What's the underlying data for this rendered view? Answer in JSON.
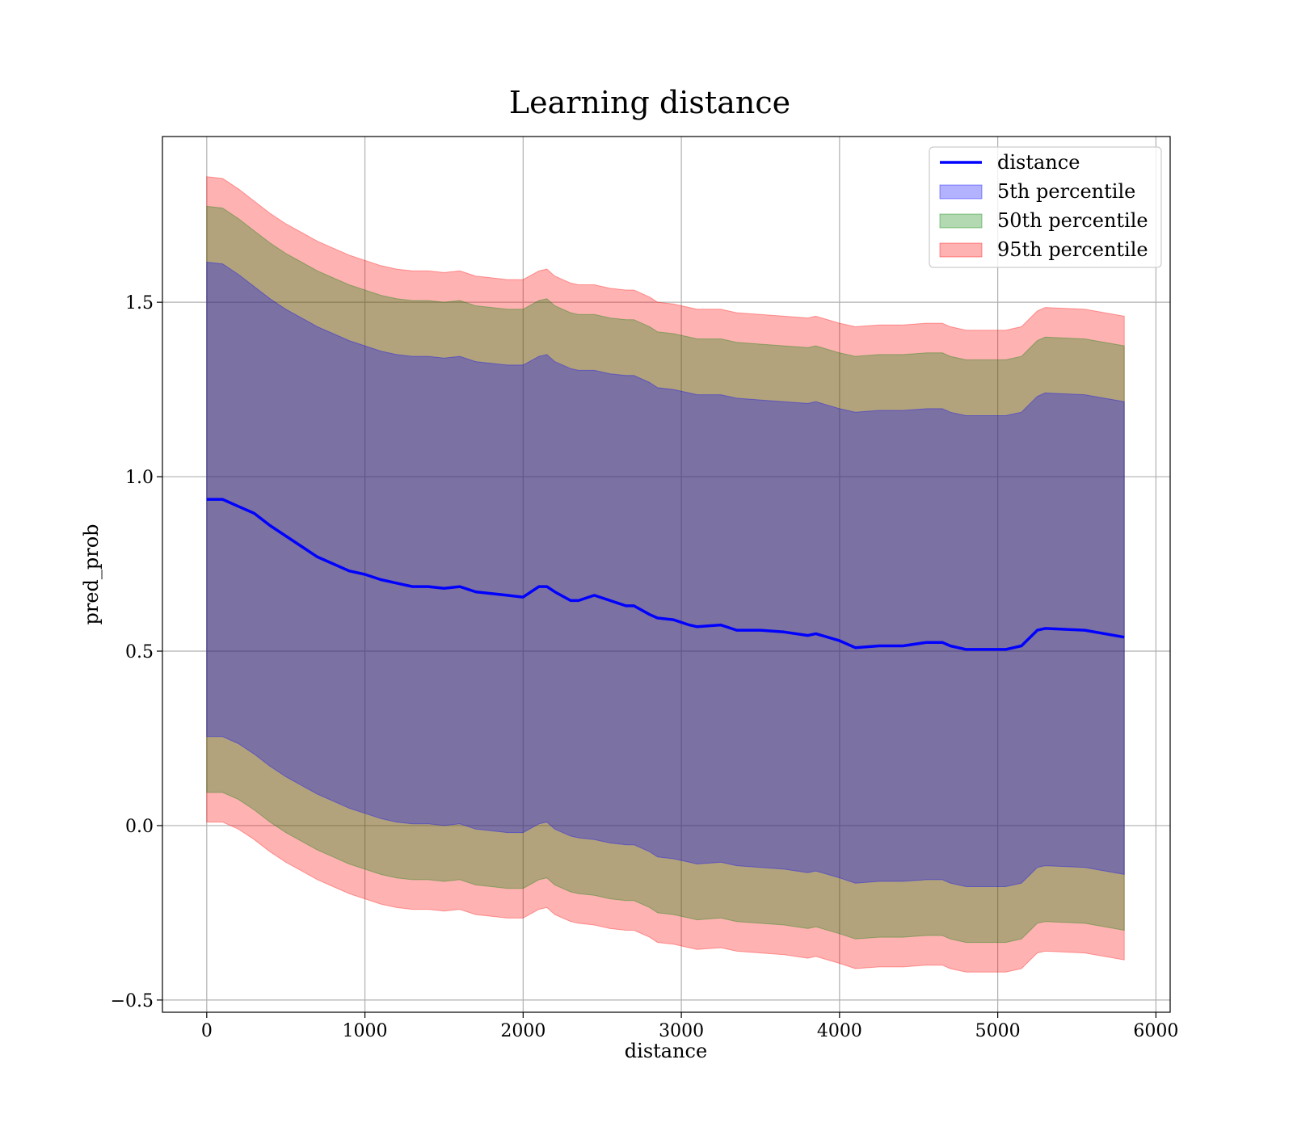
{
  "chart_data": {
    "type": "area",
    "title": "Learning distance",
    "xlabel": "distance",
    "ylabel": "pred_prob",
    "xlim": [
      -280,
      6090
    ],
    "ylim": [
      -0.535,
      1.975
    ],
    "xticks": [
      0,
      1000,
      2000,
      3000,
      4000,
      5000,
      6000
    ],
    "xtick_labels": [
      "0",
      "1000",
      "2000",
      "3000",
      "4000",
      "5000",
      "6000"
    ],
    "yticks": [
      -0.5,
      0.0,
      0.5,
      1.0,
      1.5
    ],
    "ytick_labels": [
      "−0.5",
      "0.0",
      "0.5",
      "1.0",
      "1.5"
    ],
    "grid": true,
    "legend_position": "top-right",
    "x": [
      0,
      100,
      200,
      300,
      400,
      500,
      600,
      700,
      800,
      900,
      1000,
      1100,
      1200,
      1300,
      1400,
      1500,
      1600,
      1700,
      1800,
      1900,
      2000,
      2100,
      2150,
      2200,
      2300,
      2350,
      2450,
      2550,
      2650,
      2700,
      2800,
      2850,
      2950,
      3050,
      3100,
      3250,
      3350,
      3500,
      3650,
      3800,
      3850,
      4000,
      4100,
      4250,
      4300,
      4400,
      4550,
      4650,
      4700,
      4800,
      5050,
      5150,
      5250,
      5300,
      5550,
      5800
    ],
    "series": [
      {
        "name": "distance",
        "kind": "line",
        "color": "#0000ff",
        "values": [
          0.935,
          0.935,
          0.915,
          0.895,
          0.86,
          0.83,
          0.8,
          0.77,
          0.75,
          0.73,
          0.72,
          0.705,
          0.695,
          0.685,
          0.685,
          0.68,
          0.685,
          0.67,
          0.665,
          0.66,
          0.655,
          0.685,
          0.685,
          0.67,
          0.645,
          0.645,
          0.66,
          0.645,
          0.63,
          0.63,
          0.605,
          0.595,
          0.59,
          0.575,
          0.57,
          0.575,
          0.56,
          0.56,
          0.555,
          0.545,
          0.55,
          0.53,
          0.51,
          0.515,
          0.515,
          0.515,
          0.525,
          0.525,
          0.515,
          0.505,
          0.505,
          0.515,
          0.56,
          0.565,
          0.56,
          0.54
        ]
      },
      {
        "name": "5th percentile",
        "kind": "band",
        "color": "#0000ff",
        "opacity": 0.3,
        "upper": [
          1.615,
          1.61,
          1.58,
          1.545,
          1.51,
          1.48,
          1.455,
          1.43,
          1.41,
          1.39,
          1.375,
          1.36,
          1.35,
          1.345,
          1.345,
          1.34,
          1.345,
          1.33,
          1.325,
          1.32,
          1.32,
          1.345,
          1.35,
          1.33,
          1.31,
          1.305,
          1.305,
          1.295,
          1.29,
          1.29,
          1.27,
          1.255,
          1.25,
          1.24,
          1.235,
          1.235,
          1.225,
          1.22,
          1.215,
          1.21,
          1.215,
          1.195,
          1.185,
          1.19,
          1.19,
          1.19,
          1.195,
          1.195,
          1.185,
          1.175,
          1.175,
          1.185,
          1.23,
          1.24,
          1.235,
          1.215
        ],
        "lower": [
          0.255,
          0.255,
          0.235,
          0.205,
          0.17,
          0.14,
          0.115,
          0.09,
          0.07,
          0.05,
          0.035,
          0.02,
          0.01,
          0.005,
          0.005,
          0.0,
          0.005,
          -0.01,
          -0.015,
          -0.02,
          -0.02,
          0.005,
          0.01,
          -0.01,
          -0.03,
          -0.035,
          -0.04,
          -0.05,
          -0.055,
          -0.055,
          -0.075,
          -0.09,
          -0.095,
          -0.105,
          -0.11,
          -0.105,
          -0.115,
          -0.12,
          -0.125,
          -0.135,
          -0.13,
          -0.15,
          -0.165,
          -0.16,
          -0.16,
          -0.16,
          -0.155,
          -0.155,
          -0.165,
          -0.175,
          -0.175,
          -0.165,
          -0.12,
          -0.115,
          -0.12,
          -0.14
        ]
      },
      {
        "name": "50th percentile",
        "kind": "band",
        "color": "#008000",
        "opacity": 0.3,
        "upper": [
          1.775,
          1.77,
          1.74,
          1.705,
          1.67,
          1.64,
          1.615,
          1.59,
          1.57,
          1.55,
          1.535,
          1.52,
          1.51,
          1.505,
          1.505,
          1.5,
          1.505,
          1.49,
          1.485,
          1.48,
          1.48,
          1.505,
          1.51,
          1.49,
          1.47,
          1.465,
          1.465,
          1.455,
          1.45,
          1.45,
          1.43,
          1.415,
          1.41,
          1.4,
          1.395,
          1.395,
          1.385,
          1.38,
          1.375,
          1.37,
          1.375,
          1.355,
          1.345,
          1.35,
          1.35,
          1.35,
          1.355,
          1.355,
          1.345,
          1.335,
          1.335,
          1.345,
          1.39,
          1.4,
          1.395,
          1.375
        ],
        "lower": [
          0.095,
          0.095,
          0.075,
          0.045,
          0.01,
          -0.02,
          -0.045,
          -0.07,
          -0.09,
          -0.11,
          -0.125,
          -0.14,
          -0.15,
          -0.155,
          -0.155,
          -0.16,
          -0.155,
          -0.17,
          -0.175,
          -0.18,
          -0.18,
          -0.155,
          -0.15,
          -0.17,
          -0.19,
          -0.195,
          -0.2,
          -0.21,
          -0.215,
          -0.215,
          -0.235,
          -0.25,
          -0.255,
          -0.265,
          -0.27,
          -0.265,
          -0.275,
          -0.28,
          -0.285,
          -0.295,
          -0.29,
          -0.31,
          -0.325,
          -0.32,
          -0.32,
          -0.32,
          -0.315,
          -0.315,
          -0.325,
          -0.335,
          -0.335,
          -0.325,
          -0.28,
          -0.275,
          -0.28,
          -0.3
        ]
      },
      {
        "name": "95th percentile",
        "kind": "band",
        "color": "#ff0000",
        "opacity": 0.3,
        "upper": [
          1.86,
          1.855,
          1.825,
          1.79,
          1.755,
          1.725,
          1.7,
          1.675,
          1.655,
          1.635,
          1.62,
          1.605,
          1.595,
          1.59,
          1.59,
          1.585,
          1.59,
          1.575,
          1.57,
          1.565,
          1.565,
          1.59,
          1.595,
          1.575,
          1.555,
          1.55,
          1.55,
          1.54,
          1.535,
          1.535,
          1.515,
          1.5,
          1.495,
          1.485,
          1.48,
          1.48,
          1.47,
          1.465,
          1.46,
          1.455,
          1.46,
          1.44,
          1.43,
          1.435,
          1.435,
          1.435,
          1.44,
          1.44,
          1.43,
          1.42,
          1.42,
          1.43,
          1.475,
          1.485,
          1.48,
          1.46
        ],
        "lower": [
          0.01,
          0.01,
          -0.01,
          -0.04,
          -0.075,
          -0.105,
          -0.13,
          -0.155,
          -0.175,
          -0.195,
          -0.21,
          -0.225,
          -0.235,
          -0.24,
          -0.24,
          -0.245,
          -0.24,
          -0.255,
          -0.26,
          -0.265,
          -0.265,
          -0.24,
          -0.235,
          -0.255,
          -0.275,
          -0.28,
          -0.285,
          -0.295,
          -0.3,
          -0.3,
          -0.32,
          -0.335,
          -0.34,
          -0.35,
          -0.355,
          -0.35,
          -0.36,
          -0.365,
          -0.37,
          -0.38,
          -0.375,
          -0.395,
          -0.41,
          -0.405,
          -0.405,
          -0.405,
          -0.4,
          -0.4,
          -0.41,
          -0.42,
          -0.42,
          -0.41,
          -0.365,
          -0.36,
          -0.365,
          -0.385
        ]
      }
    ]
  }
}
